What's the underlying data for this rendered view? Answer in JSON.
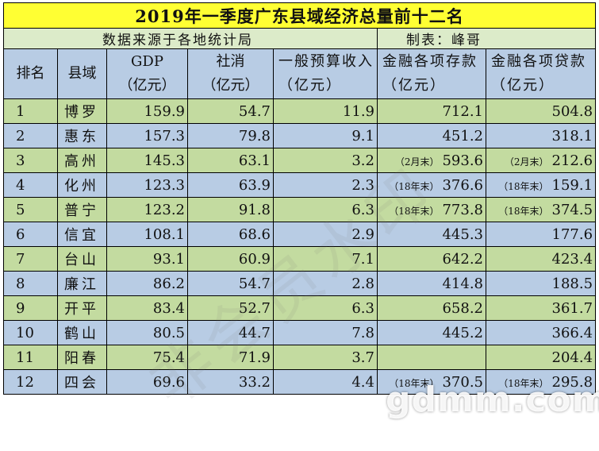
{
  "title": "2019年一季度广东县域经济总量前十二名",
  "source_label": "数据来源于各地统计局",
  "maker_label": "制表：峰哥",
  "headers": {
    "rank": "排名",
    "county": "县域",
    "gdp_line1": "GDP",
    "gdp_line2": "（亿元）",
    "retail_line1": "社消",
    "retail_line2": "（亿元）",
    "budget": "一般预算收入（亿元）",
    "deposits": "金融各项存款（亿元）",
    "loans": "金融各项贷款（亿元）"
  },
  "rows": [
    {
      "rank": "1",
      "county": "博罗",
      "gdp": "159.9",
      "retail": "54.7",
      "budget": "11.9",
      "deposit_note": "",
      "deposits": "712.1",
      "loan_note": "",
      "loans": "504.8"
    },
    {
      "rank": "2",
      "county": "惠东",
      "gdp": "157.3",
      "retail": "79.8",
      "budget": "9.1",
      "deposit_note": "",
      "deposits": "451.2",
      "loan_note": "",
      "loans": "318.1"
    },
    {
      "rank": "3",
      "county": "高州",
      "gdp": "145.3",
      "retail": "63.1",
      "budget": "3.2",
      "deposit_note": "（2月末）",
      "deposits": "593.6",
      "loan_note": "（2月末）",
      "loans": "212.6"
    },
    {
      "rank": "4",
      "county": "化州",
      "gdp": "123.3",
      "retail": "63.9",
      "budget": "2.3",
      "deposit_note": "（18年末）",
      "deposits": "376.6",
      "loan_note": "（18年末）",
      "loans": "159.1"
    },
    {
      "rank": "5",
      "county": "普宁",
      "gdp": "123.2",
      "retail": "91.8",
      "budget": "6.3",
      "deposit_note": "（18年末）",
      "deposits": "773.8",
      "loan_note": "（18年末）",
      "loans": "374.5"
    },
    {
      "rank": "6",
      "county": "信宜",
      "gdp": "108.1",
      "retail": "68.6",
      "budget": "2.9",
      "deposit_note": "",
      "deposits": "445.3",
      "loan_note": "",
      "loans": "177.6"
    },
    {
      "rank": "7",
      "county": "台山",
      "gdp": "93.1",
      "retail": "60.9",
      "budget": "7.1",
      "deposit_note": "",
      "deposits": "642.2",
      "loan_note": "",
      "loans": "423.4"
    },
    {
      "rank": "8",
      "county": "廉江",
      "gdp": "86.2",
      "retail": "54.7",
      "budget": "2.8",
      "deposit_note": "",
      "deposits": "414.8",
      "loan_note": "",
      "loans": "188.5"
    },
    {
      "rank": "9",
      "county": "开平",
      "gdp": "83.4",
      "retail": "52.7",
      "budget": "6.3",
      "deposit_note": "",
      "deposits": "658.2",
      "loan_note": "",
      "loans": "361.7"
    },
    {
      "rank": "10",
      "county": "鹤山",
      "gdp": "80.5",
      "retail": "44.7",
      "budget": "7.8",
      "deposit_note": "",
      "deposits": "445.2",
      "loan_note": "",
      "loans": "366.4"
    },
    {
      "rank": "11",
      "county": "阳春",
      "gdp": "75.4",
      "retail": "71.9",
      "budget": "3.7",
      "deposit_note": "",
      "deposits": "",
      "loan_note": "",
      "loans": "204.4"
    },
    {
      "rank": "12",
      "county": "四会",
      "gdp": "69.6",
      "retail": "33.2",
      "budget": "4.4",
      "deposit_note": "（18年末）",
      "deposits": "370.5",
      "loan_note": "（18年末）",
      "loans": "295.8"
    }
  ],
  "watermarks": {
    "diagonal": "非会员水印",
    "site": "gdmm.com"
  }
}
